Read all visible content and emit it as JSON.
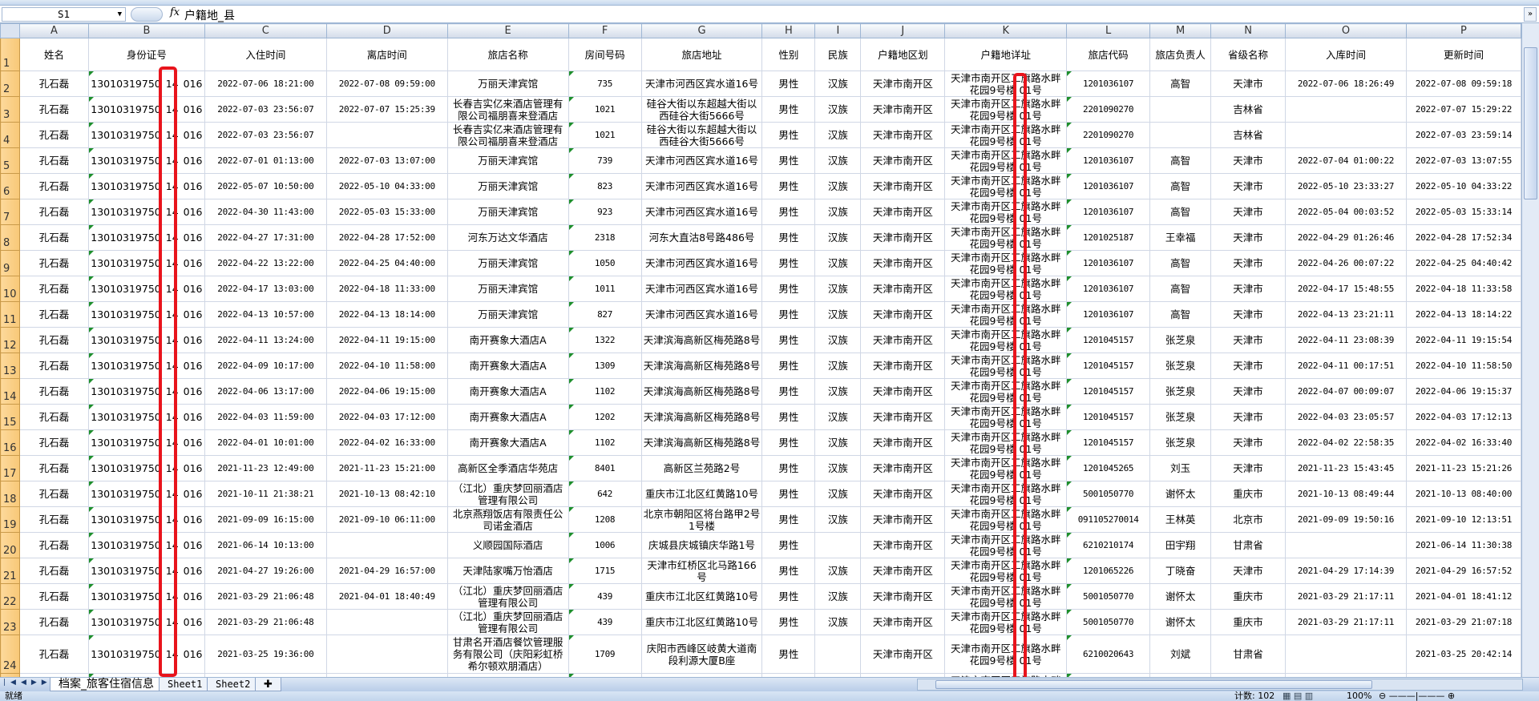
{
  "formula_bar": {
    "name_box": "S1",
    "fx_label": "fx",
    "content": "户籍地_县"
  },
  "columns": [
    "A",
    "B",
    "C",
    "D",
    "E",
    "F",
    "G",
    "H",
    "I",
    "J",
    "K",
    "L",
    "M",
    "N",
    "O",
    "P"
  ],
  "headers": [
    "姓名",
    "身份证号",
    "入住时间",
    "离店时间",
    "旅店名称",
    "房间号码",
    "旅店地址",
    "性别",
    "民族",
    "户籍地区划",
    "户籍地详址",
    "旅店代码",
    "旅店负责人",
    "省级名称",
    "入库时间",
    "更新时间"
  ],
  "id_number": {
    "prefix": "13010319750",
    "middle": "14",
    "suffix": "016"
  },
  "home_address": "天津市南开区工旗路水畔花园9号楼 01号",
  "rows": [
    {
      "n": "2",
      "c": [
        "孔石磊",
        "",
        "2022-07-06 18:21:00",
        "2022-07-08 09:59:00",
        "万丽天津宾馆",
        "735",
        "天津市河西区宾水道16号",
        "男性",
        "汉族",
        "天津市南开区",
        "",
        "1201036107",
        "高智",
        "天津市",
        "2022-07-06 18:26:49",
        "2022-07-08 09:59:18"
      ]
    },
    {
      "n": "3",
      "c": [
        "孔石磊",
        "",
        "2022-07-03 23:56:07",
        "2022-07-07 15:25:39",
        "长春吉实亿来酒店管理有限公司福朋喜来登酒店",
        "1021",
        "硅谷大街以东超越大街以西硅谷大街5666号",
        "男性",
        "汉族",
        "天津市南开区",
        "",
        "2201090270",
        "",
        "吉林省",
        "",
        "2022-07-07 15:29:22"
      ]
    },
    {
      "n": "4",
      "c": [
        "孔石磊",
        "",
        "2022-07-03 23:56:07",
        "",
        "长春吉实亿来酒店管理有限公司福朋喜来登酒店",
        "1021",
        "硅谷大街以东超越大街以西硅谷大街5666号",
        "男性",
        "汉族",
        "天津市南开区",
        "",
        "2201090270",
        "",
        "吉林省",
        "",
        "2022-07-03 23:59:14"
      ]
    },
    {
      "n": "5",
      "c": [
        "孔石磊",
        "",
        "2022-07-01 01:13:00",
        "2022-07-03 13:07:00",
        "万丽天津宾馆",
        "739",
        "天津市河西区宾水道16号",
        "男性",
        "汉族",
        "天津市南开区",
        "",
        "1201036107",
        "高智",
        "天津市",
        "2022-07-04 01:00:22",
        "2022-07-03 13:07:55"
      ]
    },
    {
      "n": "6",
      "c": [
        "孔石磊",
        "",
        "2022-05-07 10:50:00",
        "2022-05-10 04:33:00",
        "万丽天津宾馆",
        "823",
        "天津市河西区宾水道16号",
        "男性",
        "汉族",
        "天津市南开区",
        "",
        "1201036107",
        "高智",
        "天津市",
        "2022-05-10 23:33:27",
        "2022-05-10 04:33:22"
      ]
    },
    {
      "n": "7",
      "c": [
        "孔石磊",
        "",
        "2022-04-30 11:43:00",
        "2022-05-03 15:33:00",
        "万丽天津宾馆",
        "923",
        "天津市河西区宾水道16号",
        "男性",
        "汉族",
        "天津市南开区",
        "",
        "1201036107",
        "高智",
        "天津市",
        "2022-05-04 00:03:52",
        "2022-05-03 15:33:14"
      ]
    },
    {
      "n": "8",
      "c": [
        "孔石磊",
        "",
        "2022-04-27 17:31:00",
        "2022-04-28 17:52:00",
        "河东万达文华酒店",
        "2318",
        "河东大直沽8号路486号",
        "男性",
        "汉族",
        "天津市南开区",
        "",
        "1201025187",
        "王幸福",
        "天津市",
        "2022-04-29 01:26:46",
        "2022-04-28 17:52:34"
      ]
    },
    {
      "n": "9",
      "c": [
        "孔石磊",
        "",
        "2022-04-22 13:22:00",
        "2022-04-25 04:40:00",
        "万丽天津宾馆",
        "1050",
        "天津市河西区宾水道16号",
        "男性",
        "汉族",
        "天津市南开区",
        "",
        "1201036107",
        "高智",
        "天津市",
        "2022-04-26 00:07:22",
        "2022-04-25 04:40:42"
      ]
    },
    {
      "n": "10",
      "c": [
        "孔石磊",
        "",
        "2022-04-17 13:03:00",
        "2022-04-18 11:33:00",
        "万丽天津宾馆",
        "1011",
        "天津市河西区宾水道16号",
        "男性",
        "汉族",
        "天津市南开区",
        "",
        "1201036107",
        "高智",
        "天津市",
        "2022-04-17 15:48:55",
        "2022-04-18 11:33:58"
      ]
    },
    {
      "n": "11",
      "c": [
        "孔石磊",
        "",
        "2022-04-13 10:57:00",
        "2022-04-13 18:14:00",
        "万丽天津宾馆",
        "827",
        "天津市河西区宾水道16号",
        "男性",
        "汉族",
        "天津市南开区",
        "",
        "1201036107",
        "高智",
        "天津市",
        "2022-04-13 23:21:11",
        "2022-04-13 18:14:22"
      ]
    },
    {
      "n": "12",
      "c": [
        "孔石磊",
        "",
        "2022-04-11 13:24:00",
        "2022-04-11 19:15:00",
        "南开赛象大酒店A",
        "1322",
        "天津滨海高新区梅苑路8号",
        "男性",
        "汉族",
        "天津市南开区",
        "",
        "1201045157",
        "张芝泉",
        "天津市",
        "2022-04-11 23:08:39",
        "2022-04-11 19:15:54"
      ]
    },
    {
      "n": "13",
      "c": [
        "孔石磊",
        "",
        "2022-04-09 10:17:00",
        "2022-04-10 11:58:00",
        "南开赛象大酒店A",
        "1309",
        "天津滨海高新区梅苑路8号",
        "男性",
        "汉族",
        "天津市南开区",
        "",
        "1201045157",
        "张芝泉",
        "天津市",
        "2022-04-11 00:17:51",
        "2022-04-10 11:58:50"
      ]
    },
    {
      "n": "14",
      "c": [
        "孔石磊",
        "",
        "2022-04-06 13:17:00",
        "2022-04-06 19:15:00",
        "南开赛象大酒店A",
        "1102",
        "天津滨海高新区梅苑路8号",
        "男性",
        "汉族",
        "天津市南开区",
        "",
        "1201045157",
        "张芝泉",
        "天津市",
        "2022-04-07 00:09:07",
        "2022-04-06 19:15:37"
      ]
    },
    {
      "n": "15",
      "c": [
        "孔石磊",
        "",
        "2022-04-03 11:59:00",
        "2022-04-03 17:12:00",
        "南开赛象大酒店A",
        "1202",
        "天津滨海高新区梅苑路8号",
        "男性",
        "汉族",
        "天津市南开区",
        "",
        "1201045157",
        "张芝泉",
        "天津市",
        "2022-04-03 23:05:57",
        "2022-04-03 17:12:13"
      ]
    },
    {
      "n": "16",
      "c": [
        "孔石磊",
        "",
        "2022-04-01 10:01:00",
        "2022-04-02 16:33:00",
        "南开赛象大酒店A",
        "1102",
        "天津滨海高新区梅苑路8号",
        "男性",
        "汉族",
        "天津市南开区",
        "",
        "1201045157",
        "张芝泉",
        "天津市",
        "2022-04-02 22:58:35",
        "2022-04-02 16:33:40"
      ]
    },
    {
      "n": "17",
      "c": [
        "孔石磊",
        "",
        "2021-11-23 12:49:00",
        "2021-11-23 15:21:00",
        "高新区全季酒店华苑店",
        "8401",
        "高新区兰苑路2号",
        "男性",
        "汉族",
        "天津市南开区",
        "",
        "1201045265",
        "刘玉",
        "天津市",
        "2021-11-23 15:43:45",
        "2021-11-23 15:21:26"
      ]
    },
    {
      "n": "18",
      "c": [
        "孔石磊",
        "",
        "2021-10-11 21:38:21",
        "2021-10-13 08:42:10",
        "（江北）重庆梦回丽酒店管理有限公司",
        "642",
        "重庆市江北区红黄路10号",
        "男性",
        "汉族",
        "天津市南开区",
        "",
        "5001050770",
        "谢怀太",
        "重庆市",
        "2021-10-13 08:49:44",
        "2021-10-13 08:40:00"
      ]
    },
    {
      "n": "19",
      "c": [
        "孔石磊",
        "",
        "2021-09-09 16:15:00",
        "2021-09-10 06:11:00",
        "北京燕翔饭店有限责任公司诺金酒店",
        "1208",
        "北京市朝阳区将台路甲2号1号楼",
        "男性",
        "汉族",
        "天津市南开区",
        "",
        "091105270014",
        "王林英",
        "北京市",
        "2021-09-09 19:50:16",
        "2021-09-10 12:13:51"
      ]
    },
    {
      "n": "20",
      "c": [
        "孔石磊",
        "",
        "2021-06-14 10:13:00",
        "",
        "义顺园国际酒店",
        "1006",
        "庆城县庆城镇庆华路1号",
        "男性",
        "",
        "天津市南开区",
        "",
        "6210210174",
        "田宇翔",
        "甘肃省",
        "",
        "2021-06-14 11:30:38"
      ]
    },
    {
      "n": "21",
      "c": [
        "孔石磊",
        "",
        "2021-04-27 19:26:00",
        "2021-04-29 16:57:00",
        "天津陆家嘴万怡酒店",
        "1715",
        "天津市红桥区北马路166号",
        "男性",
        "汉族",
        "天津市南开区",
        "",
        "1201065226",
        "丁晓奋",
        "天津市",
        "2021-04-29 17:14:39",
        "2021-04-29 16:57:52"
      ]
    },
    {
      "n": "22",
      "c": [
        "孔石磊",
        "",
        "2021-03-29 21:06:48",
        "2021-04-01 18:40:49",
        "（江北）重庆梦回丽酒店管理有限公司",
        "439",
        "重庆市江北区红黄路10号",
        "男性",
        "汉族",
        "天津市南开区",
        "",
        "5001050770",
        "谢怀太",
        "重庆市",
        "2021-03-29 21:17:11",
        "2021-04-01 18:41:12"
      ]
    },
    {
      "n": "23",
      "c": [
        "孔石磊",
        "",
        "2021-03-29 21:06:48",
        "",
        "（江北）重庆梦回丽酒店管理有限公司",
        "439",
        "重庆市江北区红黄路10号",
        "男性",
        "汉族",
        "天津市南开区",
        "",
        "5001050770",
        "谢怀太",
        "重庆市",
        "2021-03-29 21:17:11",
        "2021-03-29 21:07:18"
      ]
    },
    {
      "n": "24",
      "c": [
        "孔石磊",
        "",
        "2021-03-25 19:36:00",
        "",
        "甘肃名开酒店餐饮管理服务有限公司（庆阳彩虹桥希尔顿欢朋酒店）",
        "1709",
        "庆阳市西峰区岐黄大道南段利源大厦B座",
        "男性",
        "",
        "天津市南开区",
        "",
        "6210020643",
        "刘斌",
        "甘肃省",
        "",
        "2021-03-25 20:42:14"
      ]
    }
  ],
  "sheet_tabs": [
    "档案_旅客住宿信息",
    "Sheet1",
    "Sheet2"
  ],
  "status": {
    "ready": "就绪",
    "count": "计数: 102",
    "zoom": "100%"
  },
  "colors": {
    "highlight": "#e8141c",
    "row_header": "#f8c877",
    "grid": "#d0d7e5"
  }
}
